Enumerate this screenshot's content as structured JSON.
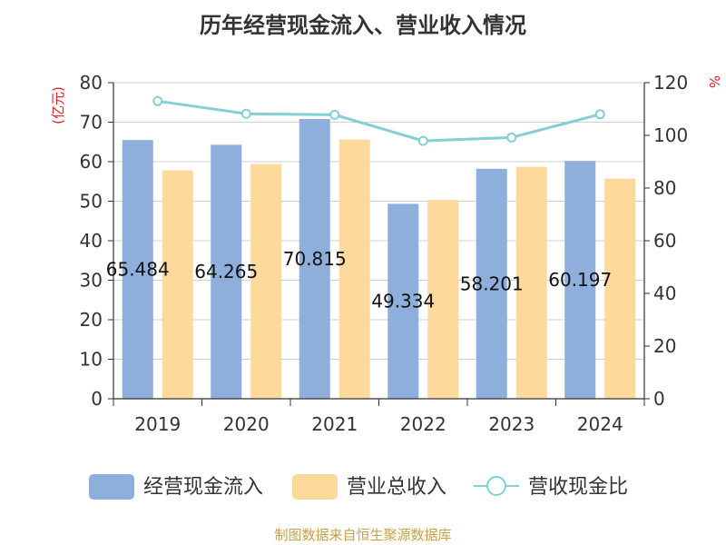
{
  "chart_data": {
    "type": "bar",
    "title": "历年经营现金流入、营业收入情况",
    "categories": [
      "2019",
      "2020",
      "2021",
      "2022",
      "2023",
      "2024"
    ],
    "y_left": {
      "unit": "(亿元)",
      "min": 0,
      "max": 80,
      "ticks": [
        "0",
        "10",
        "20",
        "30",
        "40",
        "50",
        "60",
        "70",
        "80"
      ]
    },
    "y_right": {
      "unit": "%",
      "min": 0,
      "max": 120,
      "ticks": [
        "0",
        "20",
        "40",
        "60",
        "80",
        "100",
        "120"
      ]
    },
    "series": [
      {
        "name": "经营现金流入",
        "type": "bar",
        "axis": "left",
        "color": "#8eaedb",
        "values": [
          65.484,
          64.265,
          70.815,
          49.334,
          58.201,
          60.197
        ],
        "labels": [
          "65.484",
          "64.265",
          "70.815",
          "49.334",
          "58.201",
          "60.197"
        ]
      },
      {
        "name": "营业总收入",
        "type": "bar",
        "axis": "left",
        "color": "#fdd99b",
        "values": [
          57.8,
          59.4,
          65.6,
          50.3,
          58.7,
          55.7
        ]
      },
      {
        "name": "营收现金比",
        "type": "line",
        "axis": "right",
        "color": "#84cfd6",
        "values": [
          113,
          108.2,
          107.8,
          97.9,
          99.2,
          108
        ]
      }
    ],
    "grid": true,
    "legend": "bottom"
  },
  "source_note": "制图数据来自恒生聚源数据库"
}
